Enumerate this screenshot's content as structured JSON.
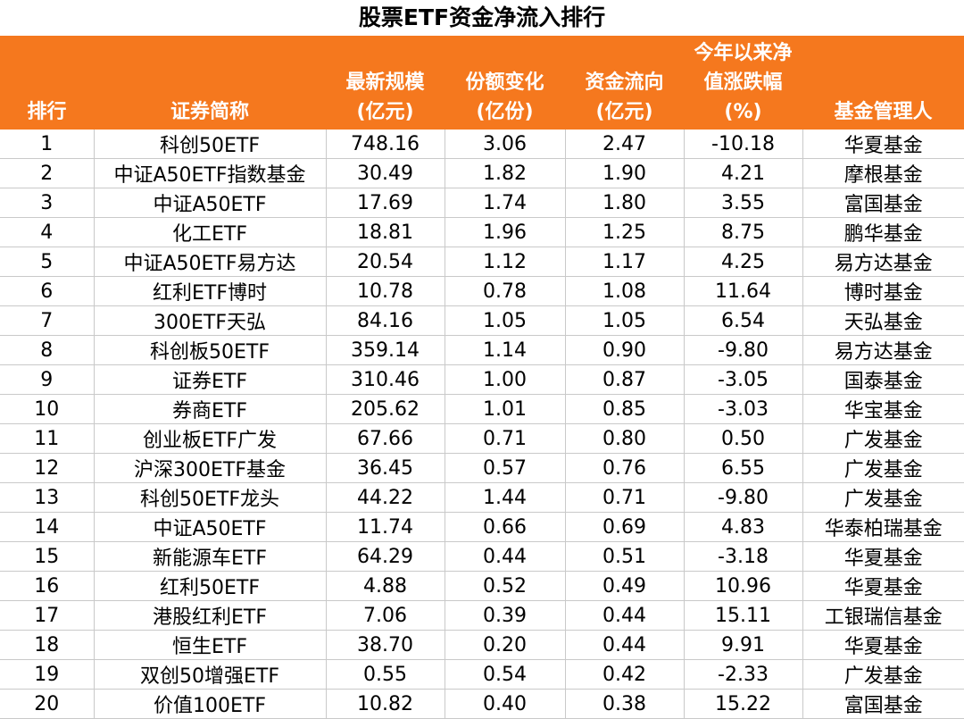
{
  "title": "股票ETF资金净流入排行",
  "chart_data": {
    "type": "table",
    "columns": [
      {
        "key": "rank",
        "lines": [
          "排行"
        ]
      },
      {
        "key": "name",
        "lines": [
          "证券简称"
        ]
      },
      {
        "key": "scale",
        "lines": [
          "最新规模",
          "(亿元)"
        ]
      },
      {
        "key": "share_change",
        "lines": [
          "份额变化",
          "(亿份)"
        ]
      },
      {
        "key": "flow",
        "lines": [
          "资金流向",
          "(亿元)"
        ]
      },
      {
        "key": "nav_change",
        "lines": [
          "今年以来净",
          "值涨跌幅",
          "(%)"
        ]
      },
      {
        "key": "manager",
        "lines": [
          "基金管理人"
        ]
      }
    ],
    "rows": [
      [
        "1",
        "科创50ETF",
        "748.16",
        "3.06",
        "2.47",
        "-10.18",
        "华夏基金"
      ],
      [
        "2",
        "中证A50ETF指数基金",
        "30.49",
        "1.82",
        "1.90",
        "4.21",
        "摩根基金"
      ],
      [
        "3",
        "中证A50ETF",
        "17.69",
        "1.74",
        "1.80",
        "3.55",
        "富国基金"
      ],
      [
        "4",
        "化工ETF",
        "18.81",
        "1.96",
        "1.25",
        "8.75",
        "鹏华基金"
      ],
      [
        "5",
        "中证A50ETF易方达",
        "20.54",
        "1.12",
        "1.17",
        "4.25",
        "易方达基金"
      ],
      [
        "6",
        "红利ETF博时",
        "10.78",
        "0.78",
        "1.08",
        "11.64",
        "博时基金"
      ],
      [
        "7",
        "300ETF天弘",
        "84.16",
        "1.05",
        "1.05",
        "6.54",
        "天弘基金"
      ],
      [
        "8",
        "科创板50ETF",
        "359.14",
        "1.14",
        "0.90",
        "-9.80",
        "易方达基金"
      ],
      [
        "9",
        "证券ETF",
        "310.46",
        "1.00",
        "0.87",
        "-3.05",
        "国泰基金"
      ],
      [
        "10",
        "券商ETF",
        "205.62",
        "1.01",
        "0.85",
        "-3.03",
        "华宝基金"
      ],
      [
        "11",
        "创业板ETF广发",
        "67.66",
        "0.71",
        "0.80",
        "0.50",
        "广发基金"
      ],
      [
        "12",
        "沪深300ETF基金",
        "36.45",
        "0.57",
        "0.76",
        "6.55",
        "广发基金"
      ],
      [
        "13",
        "科创50ETF龙头",
        "44.22",
        "1.44",
        "0.71",
        "-9.80",
        "广发基金"
      ],
      [
        "14",
        "中证A50ETF",
        "11.74",
        "0.66",
        "0.69",
        "4.83",
        "华泰柏瑞基金"
      ],
      [
        "15",
        "新能源车ETF",
        "64.29",
        "0.44",
        "0.51",
        "-3.18",
        "华夏基金"
      ],
      [
        "16",
        "红利50ETF",
        "4.88",
        "0.52",
        "0.49",
        "10.96",
        "华夏基金"
      ],
      [
        "17",
        "港股红利ETF",
        "7.06",
        "0.39",
        "0.44",
        "15.11",
        "工银瑞信基金"
      ],
      [
        "18",
        "恒生ETF",
        "38.70",
        "0.20",
        "0.44",
        "9.91",
        "华夏基金"
      ],
      [
        "19",
        "双创50增强ETF",
        "0.55",
        "0.54",
        "0.42",
        "-2.33",
        "广发基金"
      ],
      [
        "20",
        "价值100ETF",
        "10.82",
        "0.40",
        "0.38",
        "15.22",
        "富国基金"
      ]
    ]
  }
}
